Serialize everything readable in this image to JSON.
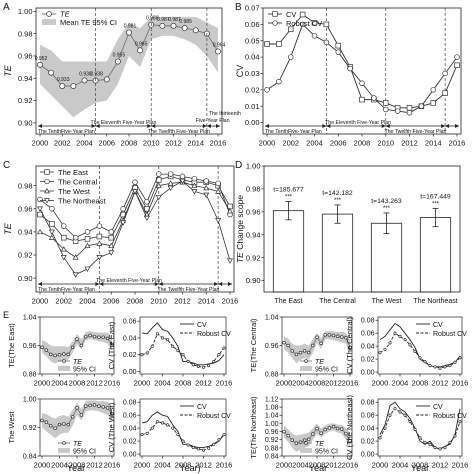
{
  "chart_data": [
    {
      "panel": "A",
      "type": "line",
      "ylabel": "TE",
      "x": [
        2000,
        2001,
        2002,
        2003,
        2004,
        2005,
        2006,
        2007,
        2008,
        2009,
        2010,
        2011,
        2012,
        2013,
        2014,
        2015,
        2016
      ],
      "series": [
        {
          "name": "TE",
          "values": [
            0.952,
            0.945,
            0.933,
            0.933,
            0.938,
            0.938,
            0.939,
            0.955,
            0.981,
            0.965,
            0.988,
            0.987,
            0.987,
            0.985,
            0.983,
            0.98,
            0.964
          ]
        }
      ],
      "band_name": "Mean TE 95% CI",
      "band_lo": [
        0.935,
        0.925,
        0.915,
        0.905,
        0.912,
        0.918,
        0.92,
        0.935,
        0.96,
        0.95,
        0.975,
        0.978,
        0.978,
        0.975,
        0.97,
        0.96,
        0.945
      ],
      "band_hi": [
        0.97,
        0.965,
        0.955,
        0.955,
        0.955,
        0.955,
        0.955,
        0.975,
        0.99,
        0.985,
        0.995,
        0.995,
        0.995,
        0.995,
        0.995,
        0.99,
        0.985
      ],
      "data_labels": [
        "0.952",
        "",
        "0.933",
        "",
        "0.938",
        "0.938",
        "",
        "0.955",
        "0.981",
        "0.965",
        "0.988",
        "0.987",
        "0.987",
        "0.985",
        "",
        "",
        "0.964"
      ],
      "yticks": [
        "0.90",
        "0.92",
        "0.94",
        "0.96",
        "0.98",
        "1.00"
      ],
      "ylim": [
        0.89,
        1.003
      ],
      "plans": [
        "The TenthFive-Year Plan",
        "The Eleventh Five-Year Plan",
        "The Twelfth Five-Year Plan",
        "The thirteenth",
        "Five-Year Plan"
      ]
    },
    {
      "panel": "B",
      "type": "line",
      "ylabel": "CV",
      "x": [
        2000,
        2001,
        2002,
        2003,
        2004,
        2005,
        2006,
        2007,
        2008,
        2009,
        2010,
        2011,
        2012,
        2013,
        2014,
        2015,
        2016
      ],
      "series": [
        {
          "name": "CV",
          "marker": "square",
          "values": [
            0.048,
            0.048,
            0.057,
            0.066,
            0.061,
            0.06,
            0.047,
            0.034,
            0.014,
            0.014,
            0.012,
            0.009,
            0.009,
            0.01,
            0.012,
            0.018,
            0.035
          ]
        },
        {
          "name": "Robust CV",
          "marker": "circle",
          "values": [
            0.02,
            0.025,
            0.04,
            0.06,
            0.053,
            0.049,
            0.043,
            0.033,
            0.024,
            0.015,
            0.008,
            0.007,
            0.006,
            0.01,
            0.02,
            0.03,
            0.04
          ]
        }
      ],
      "yticks": [
        "0.00",
        "0.01",
        "0.02",
        "0.03",
        "0.04",
        "0.05",
        "0.06",
        "0.07"
      ],
      "ylim": [
        -0.007,
        0.07
      ],
      "plans": [
        "The TenthFive-Year Plan",
        "The Eleventh Five-Year Plan",
        "The Twelfth Five-Year Plan"
      ]
    },
    {
      "panel": "C",
      "type": "line",
      "ylabel": "TE",
      "x": [
        2000,
        2001,
        2002,
        2003,
        2004,
        2005,
        2006,
        2007,
        2008,
        2009,
        2010,
        2011,
        2012,
        2013,
        2014,
        2015,
        2016
      ],
      "series": [
        {
          "name": "The East",
          "marker": "square",
          "values": [
            0.955,
            0.947,
            0.935,
            0.932,
            0.934,
            0.936,
            0.935,
            0.955,
            0.978,
            0.96,
            0.985,
            0.988,
            0.985,
            0.983,
            0.983,
            0.98,
            0.962
          ]
        },
        {
          "name": "The Central",
          "marker": "circle",
          "values": [
            0.968,
            0.96,
            0.945,
            0.935,
            0.94,
            0.945,
            0.94,
            0.96,
            0.983,
            0.966,
            0.99,
            0.99,
            0.988,
            0.986,
            0.984,
            0.982,
            0.955
          ]
        },
        {
          "name": "The West",
          "marker": "triangle-up",
          "values": [
            0.94,
            0.935,
            0.925,
            0.918,
            0.928,
            0.93,
            0.928,
            0.95,
            0.975,
            0.955,
            0.98,
            0.982,
            0.983,
            0.98,
            0.978,
            0.975,
            0.958
          ]
        },
        {
          "name": "The Northeast",
          "marker": "triangle-down",
          "values": [
            0.96,
            0.94,
            0.918,
            0.903,
            0.908,
            0.918,
            0.922,
            0.948,
            0.975,
            0.952,
            0.97,
            0.978,
            0.984,
            0.975,
            0.972,
            0.95,
            0.915
          ]
        }
      ],
      "yticks": [
        "0.90",
        "0.92",
        "0.94",
        "0.96",
        "0.98"
      ],
      "ylim": [
        0.888,
        0.997
      ],
      "plans": [
        "The TenthFive-Year Plan",
        "The Eleventh Five-Year Plan",
        "The Twelfth Five-Year Plan"
      ]
    },
    {
      "panel": "D",
      "type": "bar",
      "ylabel": "TE Change scope",
      "categories": [
        "The East",
        "The Central",
        "The West",
        "The Northeast"
      ],
      "values": [
        0.961,
        0.958,
        0.95,
        0.955
      ],
      "errors": [
        0.008,
        0.008,
        0.009,
        0.008
      ],
      "labels": [
        "t=185.677",
        "t=142.182",
        "t=143.263",
        "t=167.449"
      ],
      "sig": [
        "***",
        "***",
        "***",
        "***"
      ],
      "yticks": [
        "0.90",
        "0.92",
        "0.94",
        "0.96",
        "0.98",
        "1.00"
      ],
      "ylim": [
        0.89,
        1.0
      ]
    },
    {
      "panel": "E-East-TE",
      "type": "line",
      "ylabel": "TE(The East)",
      "x": [
        2000,
        2001,
        2002,
        2003,
        2004,
        2005,
        2006,
        2007,
        2008,
        2009,
        2010,
        2011,
        2012,
        2013,
        2014,
        2015,
        2016
      ],
      "series": [
        {
          "name": "TE",
          "values": [
            0.955,
            0.947,
            0.935,
            0.932,
            0.934,
            0.936,
            0.935,
            0.955,
            0.978,
            0.96,
            0.985,
            0.988,
            0.985,
            0.983,
            0.983,
            0.98,
            0.962
          ]
        }
      ],
      "band_name": "95% CI",
      "band_lo": [
        0.94,
        0.93,
        0.915,
        0.91,
        0.915,
        0.918,
        0.92,
        0.94,
        0.965,
        0.948,
        0.975,
        0.978,
        0.975,
        0.972,
        0.97,
        0.965,
        0.945
      ],
      "band_hi": [
        0.975,
        0.97,
        0.96,
        0.958,
        0.958,
        0.958,
        0.955,
        0.972,
        0.992,
        0.978,
        0.998,
        1.0,
        0.998,
        0.996,
        0.996,
        0.996,
        0.985
      ],
      "yticks": [
        "0.88",
        "0.96",
        "1.04"
      ],
      "ylim": [
        0.88,
        1.04
      ]
    },
    {
      "panel": "E-East-CV",
      "type": "line",
      "ylabel": "CV (The East)",
      "x": [
        2000,
        2001,
        2002,
        2003,
        2004,
        2005,
        2006,
        2007,
        2008,
        2009,
        2010,
        2011,
        2012,
        2013,
        2014,
        2015,
        2016
      ],
      "series": [
        {
          "name": "CV",
          "values": [
            0.046,
            0.045,
            0.052,
            0.058,
            0.05,
            0.048,
            0.04,
            0.03,
            0.012,
            0.012,
            0.01,
            0.008,
            0.008,
            0.009,
            0.01,
            0.013,
            0.02
          ]
        },
        {
          "name": "Robust CV",
          "values": [
            0.02,
            0.022,
            0.03,
            0.045,
            0.04,
            0.038,
            0.03,
            0.025,
            0.02,
            0.012,
            0.008,
            0.006,
            0.005,
            0.007,
            0.012,
            0.02,
            0.028
          ]
        }
      ],
      "yticks": [
        "0.00",
        "0.02",
        "0.04",
        "0.06"
      ],
      "ylim": [
        -0.003,
        0.065
      ]
    },
    {
      "panel": "E-Central-TE",
      "type": "line",
      "ylabel": "TE(The Central)",
      "x": [
        2000,
        2001,
        2002,
        2003,
        2004,
        2005,
        2006,
        2007,
        2008,
        2009,
        2010,
        2011,
        2012,
        2013,
        2014,
        2015,
        2016
      ],
      "series": [
        {
          "name": "TE",
          "values": [
            0.968,
            0.96,
            0.945,
            0.935,
            0.94,
            0.945,
            0.94,
            0.96,
            0.983,
            0.966,
            0.99,
            0.99,
            0.988,
            0.986,
            0.984,
            0.982,
            0.955
          ]
        }
      ],
      "band_name": "95% CI",
      "band_lo": [
        0.95,
        0.94,
        0.925,
        0.91,
        0.92,
        0.925,
        0.92,
        0.94,
        0.968,
        0.95,
        0.978,
        0.978,
        0.975,
        0.972,
        0.97,
        0.965,
        0.935
      ],
      "band_hi": [
        0.985,
        0.98,
        0.965,
        0.96,
        0.96,
        0.965,
        0.96,
        0.978,
        0.995,
        0.98,
        1.0,
        1.0,
        1.0,
        0.998,
        0.998,
        0.996,
        0.975
      ],
      "yticks": [
        "0.88",
        "0.96",
        "1.04"
      ],
      "ylim": [
        0.88,
        1.04
      ]
    },
    {
      "panel": "E-Central-CV",
      "type": "line",
      "ylabel": "CV (The Central)",
      "x": [
        2000,
        2001,
        2002,
        2003,
        2004,
        2005,
        2006,
        2007,
        2008,
        2009,
        2010,
        2011,
        2012,
        2013,
        2014,
        2015,
        2016
      ],
      "series": [
        {
          "name": "CV",
          "values": [
            0.05,
            0.055,
            0.065,
            0.075,
            0.07,
            0.06,
            0.05,
            0.038,
            0.02,
            0.015,
            0.01,
            0.008,
            0.008,
            0.01,
            0.012,
            0.015,
            0.025
          ]
        },
        {
          "name": "Robust CV",
          "values": [
            0.03,
            0.035,
            0.045,
            0.06,
            0.055,
            0.05,
            0.042,
            0.032,
            0.022,
            0.016,
            0.01,
            0.008,
            0.006,
            0.008,
            0.01,
            0.015,
            0.022
          ]
        }
      ],
      "yticks": [
        "0.00",
        "0.02",
        "0.04",
        "0.06",
        "0.08"
      ],
      "ylim": [
        -0.003,
        0.085
      ]
    },
    {
      "panel": "E-West-TE",
      "type": "line",
      "ylabel": "The West",
      "x": [
        2000,
        2001,
        2002,
        2003,
        2004,
        2005,
        2006,
        2007,
        2008,
        2009,
        2010,
        2011,
        2012,
        2013,
        2014,
        2015,
        2016
      ],
      "series": [
        {
          "name": "TE",
          "values": [
            0.94,
            0.935,
            0.925,
            0.918,
            0.928,
            0.93,
            0.928,
            0.95,
            0.975,
            0.955,
            0.98,
            0.982,
            0.983,
            0.98,
            0.978,
            0.975,
            0.958
          ]
        }
      ],
      "band_name": "95% CI",
      "band_lo": [
        0.92,
        0.91,
        0.9,
        0.89,
        0.9,
        0.905,
        0.905,
        0.925,
        0.955,
        0.94,
        0.965,
        0.968,
        0.968,
        0.965,
        0.96,
        0.955,
        0.935
      ],
      "band_hi": [
        0.96,
        0.958,
        0.95,
        0.945,
        0.952,
        0.955,
        0.95,
        0.97,
        0.99,
        0.972,
        0.995,
        0.996,
        0.996,
        0.994,
        0.994,
        0.992,
        0.978
      ],
      "yticks": [
        "0.84",
        "0.92",
        "1.00"
      ],
      "ylim": [
        0.84,
        1.0
      ]
    },
    {
      "panel": "E-West-CV",
      "type": "line",
      "ylabel": "CV (The West)",
      "x": [
        2000,
        2001,
        2002,
        2003,
        2004,
        2005,
        2006,
        2007,
        2008,
        2009,
        2010,
        2011,
        2012,
        2013,
        2014,
        2015,
        2016
      ],
      "series": [
        {
          "name": "CV",
          "values": [
            0.048,
            0.05,
            0.06,
            0.065,
            0.06,
            0.058,
            0.045,
            0.035,
            0.015,
            0.015,
            0.012,
            0.01,
            0.01,
            0.012,
            0.015,
            0.02,
            0.03
          ]
        },
        {
          "name": "Robust CV",
          "values": [
            0.03,
            0.032,
            0.04,
            0.05,
            0.048,
            0.045,
            0.04,
            0.03,
            0.02,
            0.014,
            0.01,
            0.008,
            0.006,
            0.009,
            0.015,
            0.022,
            0.03
          ]
        }
      ],
      "yticks": [
        "0.00",
        "0.02",
        "0.04",
        "0.06",
        "0.08"
      ],
      "ylim": [
        -0.003,
        0.085
      ]
    },
    {
      "panel": "E-Northeast-TE",
      "type": "line",
      "ylabel": "TE(The Northeast)",
      "x": [
        2000,
        2001,
        2002,
        2003,
        2004,
        2005,
        2006,
        2007,
        2008,
        2009,
        2010,
        2011,
        2012,
        2013,
        2014,
        2015,
        2016
      ],
      "series": [
        {
          "name": "TE",
          "values": [
            0.96,
            0.94,
            0.918,
            0.903,
            0.908,
            0.918,
            0.922,
            0.948,
            0.975,
            0.952,
            0.97,
            0.978,
            0.984,
            0.975,
            0.972,
            0.95,
            0.915
          ]
        }
      ],
      "band_name": "95% CI",
      "band_lo": [
        0.93,
        0.91,
        0.88,
        0.86,
        0.87,
        0.88,
        0.89,
        0.92,
        0.95,
        0.93,
        0.95,
        0.96,
        0.965,
        0.955,
        0.95,
        0.92,
        0.88
      ],
      "band_hi": [
        0.99,
        0.97,
        0.95,
        0.94,
        0.945,
        0.95,
        0.955,
        0.975,
        1.0,
        0.975,
        0.99,
        1.0,
        1.0,
        0.995,
        0.992,
        0.98,
        0.95
      ],
      "yticks": [
        "0.84",
        "0.88",
        "0.92",
        "0.96",
        "1.00",
        "1.04",
        "1.08",
        "1.12"
      ],
      "ylim": [
        0.84,
        1.12
      ]
    },
    {
      "panel": "E-Northeast-CV",
      "type": "line",
      "ylabel": "CV (The Northeast)",
      "x": [
        2000,
        2001,
        2002,
        2003,
        2004,
        2005,
        2006,
        2007,
        2008,
        2009,
        2010,
        2011,
        2012,
        2013,
        2014,
        2015,
        2016
      ],
      "series": [
        {
          "name": "CV",
          "values": [
            0.03,
            0.045,
            0.075,
            0.08,
            0.07,
            0.065,
            0.055,
            0.04,
            0.02,
            0.015,
            0.02,
            0.01,
            0.008,
            0.012,
            0.015,
            0.03,
            0.07
          ]
        },
        {
          "name": "Robust CV",
          "values": [
            0.025,
            0.04,
            0.06,
            0.07,
            0.065,
            0.06,
            0.05,
            0.038,
            0.025,
            0.018,
            0.015,
            0.01,
            0.008,
            0.01,
            0.018,
            0.028,
            0.05
          ]
        }
      ],
      "yticks": [
        "0.00",
        "0.02",
        "0.04",
        "0.06",
        "0.08"
      ],
      "ylim": [
        -0.003,
        0.085
      ]
    }
  ],
  "figure": {
    "panel_letters": [
      "A",
      "B",
      "C",
      "D",
      "E"
    ],
    "xticks_main": [
      "2000",
      "2002",
      "2004",
      "2006",
      "2008",
      "2010",
      "2012",
      "2014",
      "2016"
    ],
    "xticks_small": [
      "2000",
      "2004",
      "2008",
      "2012",
      "2016"
    ],
    "xlabel_bottom": "Year",
    "colors": {
      "band": "#c9c9c9",
      "line": "#7a7a7a",
      "dark": "#333333",
      "marker_fill": "#ffffff"
    }
  }
}
